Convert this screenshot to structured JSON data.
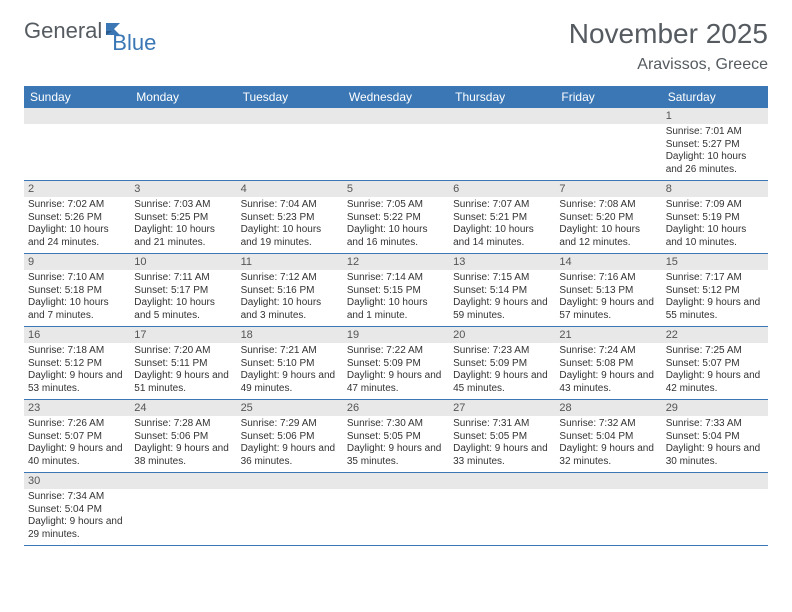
{
  "logo": {
    "word1": "General",
    "word2": "Blue",
    "brand_color": "#3a77b4",
    "gray": "#555b60"
  },
  "title": "November 2025",
  "location": "Aravissos, Greece",
  "weekdays": [
    "Sunday",
    "Monday",
    "Tuesday",
    "Wednesday",
    "Thursday",
    "Friday",
    "Saturday"
  ],
  "header_bg": "#3a77b4",
  "header_fg": "#ffffff",
  "daynum_bg": "#e8e8e8",
  "cell_border": "#3a77b4",
  "weeks": [
    [
      {
        "n": "",
        "sr": "",
        "ss": "",
        "dl": ""
      },
      {
        "n": "",
        "sr": "",
        "ss": "",
        "dl": ""
      },
      {
        "n": "",
        "sr": "",
        "ss": "",
        "dl": ""
      },
      {
        "n": "",
        "sr": "",
        "ss": "",
        "dl": ""
      },
      {
        "n": "",
        "sr": "",
        "ss": "",
        "dl": ""
      },
      {
        "n": "",
        "sr": "",
        "ss": "",
        "dl": ""
      },
      {
        "n": "1",
        "sr": "Sunrise: 7:01 AM",
        "ss": "Sunset: 5:27 PM",
        "dl": "Daylight: 10 hours and 26 minutes."
      }
    ],
    [
      {
        "n": "2",
        "sr": "Sunrise: 7:02 AM",
        "ss": "Sunset: 5:26 PM",
        "dl": "Daylight: 10 hours and 24 minutes."
      },
      {
        "n": "3",
        "sr": "Sunrise: 7:03 AM",
        "ss": "Sunset: 5:25 PM",
        "dl": "Daylight: 10 hours and 21 minutes."
      },
      {
        "n": "4",
        "sr": "Sunrise: 7:04 AM",
        "ss": "Sunset: 5:23 PM",
        "dl": "Daylight: 10 hours and 19 minutes."
      },
      {
        "n": "5",
        "sr": "Sunrise: 7:05 AM",
        "ss": "Sunset: 5:22 PM",
        "dl": "Daylight: 10 hours and 16 minutes."
      },
      {
        "n": "6",
        "sr": "Sunrise: 7:07 AM",
        "ss": "Sunset: 5:21 PM",
        "dl": "Daylight: 10 hours and 14 minutes."
      },
      {
        "n": "7",
        "sr": "Sunrise: 7:08 AM",
        "ss": "Sunset: 5:20 PM",
        "dl": "Daylight: 10 hours and 12 minutes."
      },
      {
        "n": "8",
        "sr": "Sunrise: 7:09 AM",
        "ss": "Sunset: 5:19 PM",
        "dl": "Daylight: 10 hours and 10 minutes."
      }
    ],
    [
      {
        "n": "9",
        "sr": "Sunrise: 7:10 AM",
        "ss": "Sunset: 5:18 PM",
        "dl": "Daylight: 10 hours and 7 minutes."
      },
      {
        "n": "10",
        "sr": "Sunrise: 7:11 AM",
        "ss": "Sunset: 5:17 PM",
        "dl": "Daylight: 10 hours and 5 minutes."
      },
      {
        "n": "11",
        "sr": "Sunrise: 7:12 AM",
        "ss": "Sunset: 5:16 PM",
        "dl": "Daylight: 10 hours and 3 minutes."
      },
      {
        "n": "12",
        "sr": "Sunrise: 7:14 AM",
        "ss": "Sunset: 5:15 PM",
        "dl": "Daylight: 10 hours and 1 minute."
      },
      {
        "n": "13",
        "sr": "Sunrise: 7:15 AM",
        "ss": "Sunset: 5:14 PM",
        "dl": "Daylight: 9 hours and 59 minutes."
      },
      {
        "n": "14",
        "sr": "Sunrise: 7:16 AM",
        "ss": "Sunset: 5:13 PM",
        "dl": "Daylight: 9 hours and 57 minutes."
      },
      {
        "n": "15",
        "sr": "Sunrise: 7:17 AM",
        "ss": "Sunset: 5:12 PM",
        "dl": "Daylight: 9 hours and 55 minutes."
      }
    ],
    [
      {
        "n": "16",
        "sr": "Sunrise: 7:18 AM",
        "ss": "Sunset: 5:12 PM",
        "dl": "Daylight: 9 hours and 53 minutes."
      },
      {
        "n": "17",
        "sr": "Sunrise: 7:20 AM",
        "ss": "Sunset: 5:11 PM",
        "dl": "Daylight: 9 hours and 51 minutes."
      },
      {
        "n": "18",
        "sr": "Sunrise: 7:21 AM",
        "ss": "Sunset: 5:10 PM",
        "dl": "Daylight: 9 hours and 49 minutes."
      },
      {
        "n": "19",
        "sr": "Sunrise: 7:22 AM",
        "ss": "Sunset: 5:09 PM",
        "dl": "Daylight: 9 hours and 47 minutes."
      },
      {
        "n": "20",
        "sr": "Sunrise: 7:23 AM",
        "ss": "Sunset: 5:09 PM",
        "dl": "Daylight: 9 hours and 45 minutes."
      },
      {
        "n": "21",
        "sr": "Sunrise: 7:24 AM",
        "ss": "Sunset: 5:08 PM",
        "dl": "Daylight: 9 hours and 43 minutes."
      },
      {
        "n": "22",
        "sr": "Sunrise: 7:25 AM",
        "ss": "Sunset: 5:07 PM",
        "dl": "Daylight: 9 hours and 42 minutes."
      }
    ],
    [
      {
        "n": "23",
        "sr": "Sunrise: 7:26 AM",
        "ss": "Sunset: 5:07 PM",
        "dl": "Daylight: 9 hours and 40 minutes."
      },
      {
        "n": "24",
        "sr": "Sunrise: 7:28 AM",
        "ss": "Sunset: 5:06 PM",
        "dl": "Daylight: 9 hours and 38 minutes."
      },
      {
        "n": "25",
        "sr": "Sunrise: 7:29 AM",
        "ss": "Sunset: 5:06 PM",
        "dl": "Daylight: 9 hours and 36 minutes."
      },
      {
        "n": "26",
        "sr": "Sunrise: 7:30 AM",
        "ss": "Sunset: 5:05 PM",
        "dl": "Daylight: 9 hours and 35 minutes."
      },
      {
        "n": "27",
        "sr": "Sunrise: 7:31 AM",
        "ss": "Sunset: 5:05 PM",
        "dl": "Daylight: 9 hours and 33 minutes."
      },
      {
        "n": "28",
        "sr": "Sunrise: 7:32 AM",
        "ss": "Sunset: 5:04 PM",
        "dl": "Daylight: 9 hours and 32 minutes."
      },
      {
        "n": "29",
        "sr": "Sunrise: 7:33 AM",
        "ss": "Sunset: 5:04 PM",
        "dl": "Daylight: 9 hours and 30 minutes."
      }
    ],
    [
      {
        "n": "30",
        "sr": "Sunrise: 7:34 AM",
        "ss": "Sunset: 5:04 PM",
        "dl": "Daylight: 9 hours and 29 minutes."
      },
      {
        "n": "",
        "sr": "",
        "ss": "",
        "dl": ""
      },
      {
        "n": "",
        "sr": "",
        "ss": "",
        "dl": ""
      },
      {
        "n": "",
        "sr": "",
        "ss": "",
        "dl": ""
      },
      {
        "n": "",
        "sr": "",
        "ss": "",
        "dl": ""
      },
      {
        "n": "",
        "sr": "",
        "ss": "",
        "dl": ""
      },
      {
        "n": "",
        "sr": "",
        "ss": "",
        "dl": ""
      }
    ]
  ]
}
